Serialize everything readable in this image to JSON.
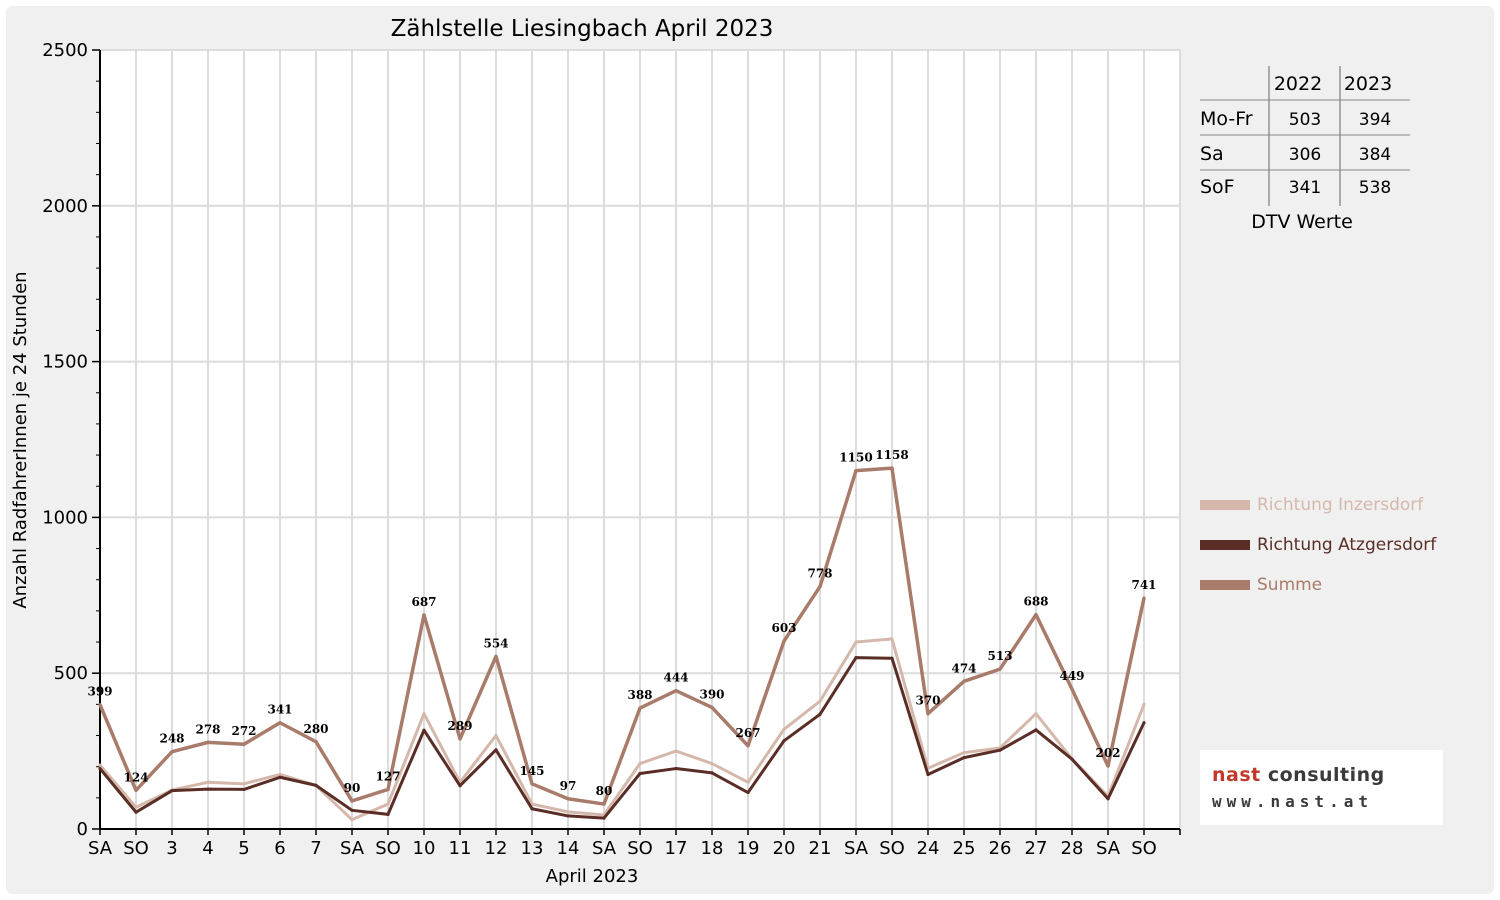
{
  "chart_data": {
    "type": "line",
    "title": "Zählstelle Liesingbach April 2023",
    "xlabel": "April 2023",
    "ylabel": "Anzahl RadfahrerInnen je 24 Stunden",
    "ylim": [
      0,
      2500
    ],
    "yticks": [
      "0",
      "500",
      "1000",
      "1500",
      "2000",
      "2500"
    ],
    "grid": true,
    "legend_position": "right",
    "categories": [
      "SA",
      "SO",
      "3",
      "4",
      "5",
      "6",
      "7",
      "SA",
      "SO",
      "10",
      "11",
      "12",
      "13",
      "14",
      "SA",
      "SO",
      "17",
      "18",
      "19",
      "20",
      "21",
      "SA",
      "SO",
      "24",
      "25",
      "26",
      "27",
      "28",
      "SA",
      "SO"
    ],
    "category_colors": [
      "#000000",
      "#e00000",
      "#000000",
      "#000000",
      "#000000",
      "#000000",
      "#000000",
      "#000000",
      "#e00000",
      "#e00000",
      "#000000",
      "#000000",
      "#000000",
      "#000000",
      "#000000",
      "#e00000",
      "#000000",
      "#000000",
      "#000000",
      "#000000",
      "#000000",
      "#000000",
      "#e00000",
      "#000000",
      "#000000",
      "#000000",
      "#000000",
      "#000000",
      "#000000",
      "#e00000"
    ],
    "series": [
      {
        "name": "Richtung Inzersdorf",
        "color": "#d5b8ab",
        "values": [
          205,
          70,
          125,
          150,
          145,
          175,
          140,
          30,
          80,
          370,
          150,
          300,
          80,
          55,
          45,
          210,
          250,
          210,
          150,
          320,
          410,
          600,
          610,
          195,
          245,
          260,
          370,
          225,
          105,
          400
        ]
      },
      {
        "name": "Richtung Atzgersdorf",
        "color": "#5a2e26",
        "values": [
          194,
          54,
          123,
          128,
          127,
          166,
          140,
          60,
          47,
          317,
          139,
          254,
          65,
          42,
          35,
          178,
          194,
          180,
          117,
          283,
          368,
          550,
          548,
          175,
          229,
          253,
          318,
          224,
          97,
          341
        ]
      },
      {
        "name": "Summe",
        "color": "#a87b6a",
        "values": [
          399,
          124,
          248,
          278,
          272,
          341,
          280,
          90,
          127,
          687,
          289,
          554,
          145,
          97,
          80,
          388,
          444,
          390,
          267,
          603,
          778,
          1150,
          1158,
          370,
          474,
          513,
          688,
          449,
          202,
          741
        ]
      }
    ],
    "data_labels": [
      "399",
      "124",
      "248",
      "278",
      "272",
      "341",
      "280",
      "90",
      "127",
      "687",
      "289",
      "554",
      "145",
      "97",
      "80",
      "388",
      "444",
      "390",
      "267",
      "603",
      "778",
      "1150",
      "1158",
      "370",
      "474",
      "513",
      "688",
      "449",
      "202",
      "741"
    ]
  },
  "dtv_table": {
    "years": [
      "2022",
      "2023"
    ],
    "rows": [
      {
        "label": "Mo-Fr",
        "values": [
          "503",
          "394"
        ]
      },
      {
        "label": "Sa",
        "values": [
          "306",
          "384"
        ]
      },
      {
        "label": "SoF",
        "values": [
          "341",
          "538"
        ]
      }
    ],
    "caption": "DTV Werte"
  },
  "logo": {
    "name_part1": "nast ",
    "name_part2": "consulting",
    "url": "www.nast.at"
  }
}
